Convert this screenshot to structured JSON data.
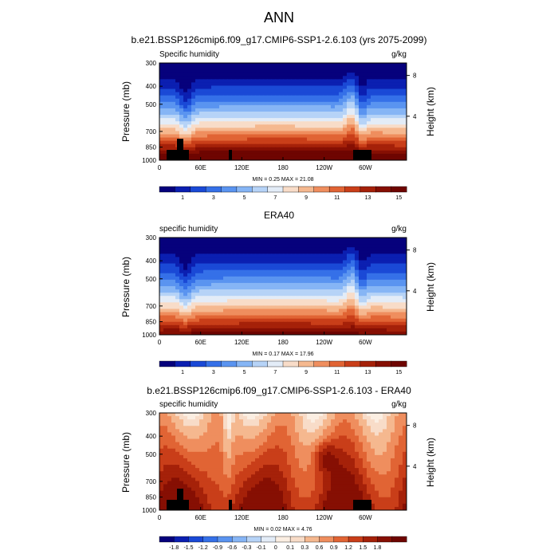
{
  "figure": {
    "title": "ANN"
  },
  "colors": {
    "palette": [
      "#06017c",
      "#0b1fb1",
      "#1a49d6",
      "#3570e8",
      "#5a94f0",
      "#86b5f5",
      "#b6d3f7",
      "#e3ecf7",
      "#f8dcc8",
      "#f5b88f",
      "#ef8e5e",
      "#e16434",
      "#c93e19",
      "#a52109",
      "#860f03",
      "#6e0501"
    ],
    "diff_palette": [
      "#06017c",
      "#0b1fb1",
      "#1a49d6",
      "#3570e8",
      "#5a94f0",
      "#86b5f5",
      "#b6d3f7",
      "#e3ecf7",
      "#fbeee2",
      "#f8dcc8",
      "#f5b88f",
      "#ef8e5e",
      "#e16434",
      "#c93e19",
      "#a52109",
      "#860f03",
      "#6e0501"
    ],
    "topography": "#000000"
  },
  "chart_data": [
    {
      "type": "heatmap",
      "title": "b.e21.BSSP126cmip6.f09_g17.CMIP6-SSP1-2.6.103 (yrs 2075-2099)",
      "left_label": "Specific humidity",
      "right_label": "g/kg",
      "ylabel": "Pressure (mb)",
      "y2label": "Height (km)",
      "yticks": [
        "300",
        "400",
        "500",
        "700",
        "850",
        "1000"
      ],
      "y2ticks": [
        "8",
        "4"
      ],
      "xticks": [
        "0",
        "60E",
        "120E",
        "180",
        "120W",
        "60W"
      ],
      "stats": "MIN =   0.25  MAX =  21.08",
      "colorbar_labels": [
        "1",
        "3",
        "5",
        "7",
        "9",
        "11",
        "13",
        "15"
      ],
      "field": "model",
      "mask": true
    },
    {
      "type": "heatmap",
      "title": "ERA40",
      "left_label": "specific humidity",
      "right_label": "g/kg",
      "ylabel": "Pressure (mb)",
      "y2label": "Height (km)",
      "yticks": [
        "300",
        "400",
        "500",
        "700",
        "850",
        "1000"
      ],
      "y2ticks": [
        "8",
        "4"
      ],
      "xticks": [
        "0",
        "60E",
        "120E",
        "180",
        "120W",
        "60W"
      ],
      "stats": "MIN =   0.17  MAX =  17.96",
      "colorbar_labels": [
        "1",
        "3",
        "5",
        "7",
        "9",
        "11",
        "13",
        "15"
      ],
      "field": "obs",
      "mask": false
    },
    {
      "type": "heatmap",
      "title": "b.e21.BSSP126cmip6.f09_g17.CMIP6-SSP1-2.6.103 - ERA40",
      "left_label": "specific humidity",
      "right_label": "g/kg",
      "ylabel": "Pressure (mb)",
      "y2label": "Height (km)",
      "yticks": [
        "300",
        "400",
        "500",
        "700",
        "850",
        "1000"
      ],
      "y2ticks": [
        "8",
        "4"
      ],
      "xticks": [
        "0",
        "60E",
        "120E",
        "180",
        "120W",
        "60W"
      ],
      "stats": "MIN =   0.02  MAX =   4.76",
      "colorbar_labels": [
        "-1.8",
        "-1.5",
        "-1.2",
        "-0.9",
        "-0.6",
        "-0.3",
        "-0.1",
        "0",
        "0.1",
        "0.3",
        "0.6",
        "0.9",
        "1.2",
        "1.5",
        "1.8"
      ],
      "field": "diff",
      "mask": true
    }
  ]
}
